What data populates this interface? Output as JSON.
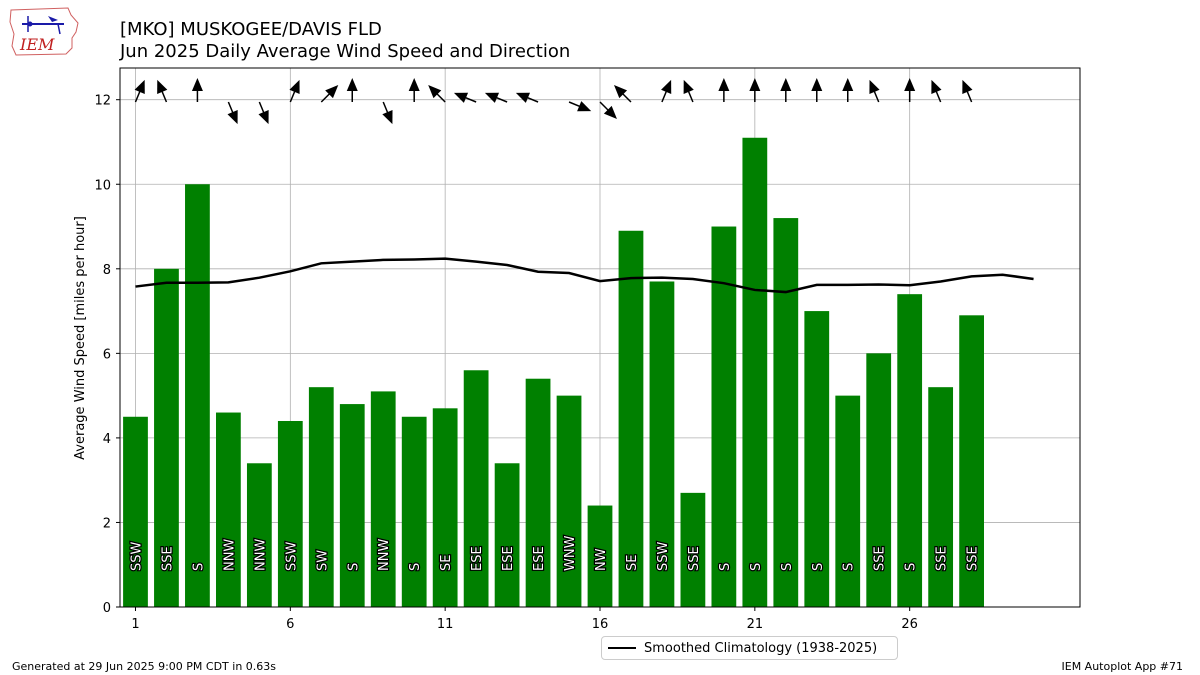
{
  "header": {
    "title_line1": "[MKO] MUSKOGEE/DAVIS FLD",
    "title_line2": "Jun 2025 Daily Average Wind Speed and Direction"
  },
  "logo": {
    "text": "IEM"
  },
  "footer": {
    "left": "Generated at 29 Jun 2025 9:00 PM CDT in 0.63s",
    "right": "IEM Autoplot App #71"
  },
  "legend": {
    "climatology_label": "Smoothed Climatology (1938-2025)"
  },
  "colors": {
    "bar": "#008000",
    "line": "#000000",
    "grid": "#b0b0b0"
  },
  "chart_data": {
    "type": "bar",
    "title": "[MKO] MUSKOGEE/DAVIS FLD",
    "subtitle": "Jun 2025 Daily Average Wind Speed and Direction",
    "ylabel": "Average Wind Speed [miles per hour]",
    "xlabel": "",
    "xlim": [
      0.5,
      31.5
    ],
    "ylim": [
      0,
      12.75
    ],
    "xticks": [
      1,
      6,
      11,
      16,
      21,
      26
    ],
    "yticks": [
      0,
      2,
      4,
      6,
      8,
      10,
      12
    ],
    "grid": true,
    "legend_position": "bottom-center",
    "days": [
      1,
      2,
      3,
      4,
      5,
      6,
      7,
      8,
      9,
      10,
      11,
      12,
      13,
      14,
      15,
      16,
      17,
      18,
      19,
      20,
      21,
      22,
      23,
      24,
      25,
      26,
      27,
      28
    ],
    "speed": [
      4.5,
      8.0,
      10.0,
      4.6,
      3.4,
      4.4,
      5.2,
      4.8,
      5.1,
      4.5,
      4.7,
      5.6,
      3.4,
      5.4,
      5.0,
      2.4,
      8.9,
      7.7,
      2.7,
      9.0,
      11.1,
      9.2,
      7.0,
      5.0,
      6.0,
      7.4,
      5.2,
      6.9
    ],
    "direction": [
      "SSW",
      "SSE",
      "S",
      "NNW",
      "NNW",
      "SSW",
      "SW",
      "S",
      "NNW",
      "S",
      "SE",
      "ESE",
      "ESE",
      "ESE",
      "WNW",
      "NW",
      "SE",
      "SSW",
      "SSE",
      "S",
      "S",
      "S",
      "S",
      "S",
      "SSE",
      "S",
      "SSE",
      "SSE"
    ],
    "climatology": {
      "name": "Smoothed Climatology (1938-2025)",
      "x": [
        1,
        2,
        3,
        4,
        5,
        6,
        7,
        8,
        9,
        10,
        11,
        12,
        13,
        14,
        15,
        16,
        17,
        18,
        19,
        20,
        21,
        22,
        23,
        24,
        25,
        26,
        27,
        28,
        29,
        30
      ],
      "values": [
        7.58,
        7.67,
        7.67,
        7.68,
        7.79,
        7.94,
        8.13,
        8.17,
        8.21,
        8.22,
        8.24,
        8.17,
        8.09,
        7.93,
        7.9,
        7.71,
        7.78,
        7.79,
        7.76,
        7.66,
        7.5,
        7.45,
        7.62,
        7.62,
        7.63,
        7.61,
        7.7,
        7.82,
        7.86,
        7.76
      ]
    }
  }
}
